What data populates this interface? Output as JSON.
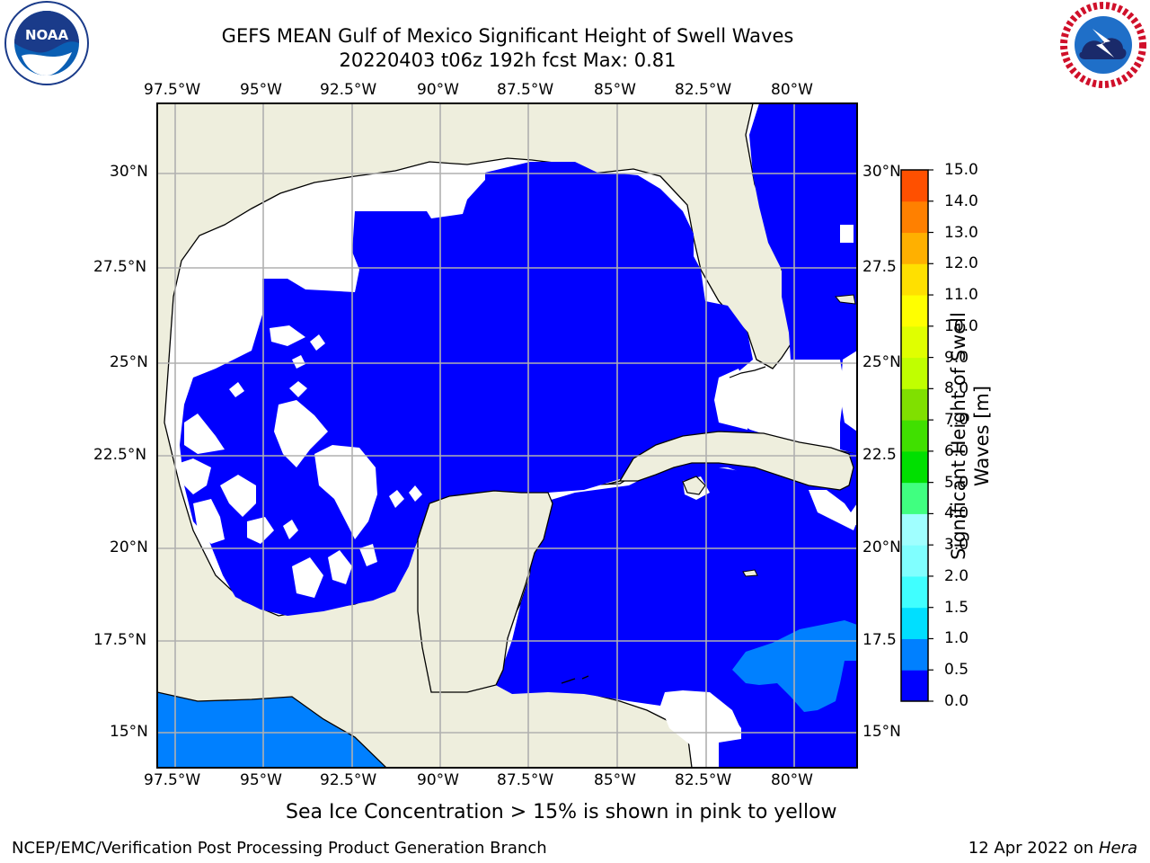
{
  "header": {
    "title_line1": "GEFS MEAN Gulf of Mexico Significant Height of Swell Waves",
    "title_line2": "20220403 t06z 192h fcst   Max: 0.81"
  },
  "logos": {
    "left": {
      "name": "noaa-logo",
      "text": "NOAA",
      "ring_text": "NATIONAL OCEANIC AND ATMOSPHERIC ADMINISTRATION · U.S. DEPARTMENT OF COMMERCE"
    },
    "right": {
      "name": "nws-logo",
      "ring_text": "NATIONAL WEATHER SERVICE"
    }
  },
  "map": {
    "lon_labels": [
      "97.5°W",
      "95°W",
      "92.5°W",
      "90°W",
      "87.5°W",
      "85°W",
      "82.5°W",
      "80°W"
    ],
    "lat_labels_left": [
      "30°N",
      "27.5°N",
      "25°N",
      "22.5°N",
      "20°N",
      "17.5°N",
      "15°N"
    ],
    "lat_labels_right": [
      "30°N",
      "27.5",
      "25°N",
      "22.5",
      "20°N",
      "17.5",
      "15°N"
    ],
    "land_color": "#eeeedd",
    "ocean_fill_color": "#0000ff",
    "light_blue_color": "#0080ff",
    "grid_color": "#b0b0b0"
  },
  "colorbar": {
    "label": "Significant Height of Swell Waves [m]",
    "label_line1": "Significant Height of Swell",
    "label_line2": "Waves [m]",
    "ticks": [
      "0.0",
      "0.5",
      "1.0",
      "1.5",
      "2.0",
      "3.0",
      "4.0",
      "5.0",
      "6.0",
      "7.0",
      "8.0",
      "9.0",
      "10.0",
      "11.0",
      "12.0",
      "13.0",
      "14.0",
      "15.0"
    ],
    "colors": [
      "#0000ff",
      "#0080ff",
      "#00dfff",
      "#40ffff",
      "#80ffff",
      "#a0ffff",
      "#40ff80",
      "#00e000",
      "#40e000",
      "#80e000",
      "#c0ff00",
      "#e0ff00",
      "#ffff00",
      "#ffe000",
      "#ffb000",
      "#ff8000",
      "#ff5000",
      "#ff2000",
      "#ff0000"
    ]
  },
  "note": "Sea Ice Concentration > 15% is shown in pink to yellow",
  "footer": {
    "left": "NCEP/EMC/Verification Post Processing Product Generation Branch",
    "right_prefix": "12 Apr 2022 on ",
    "right_italic": "Hera"
  }
}
